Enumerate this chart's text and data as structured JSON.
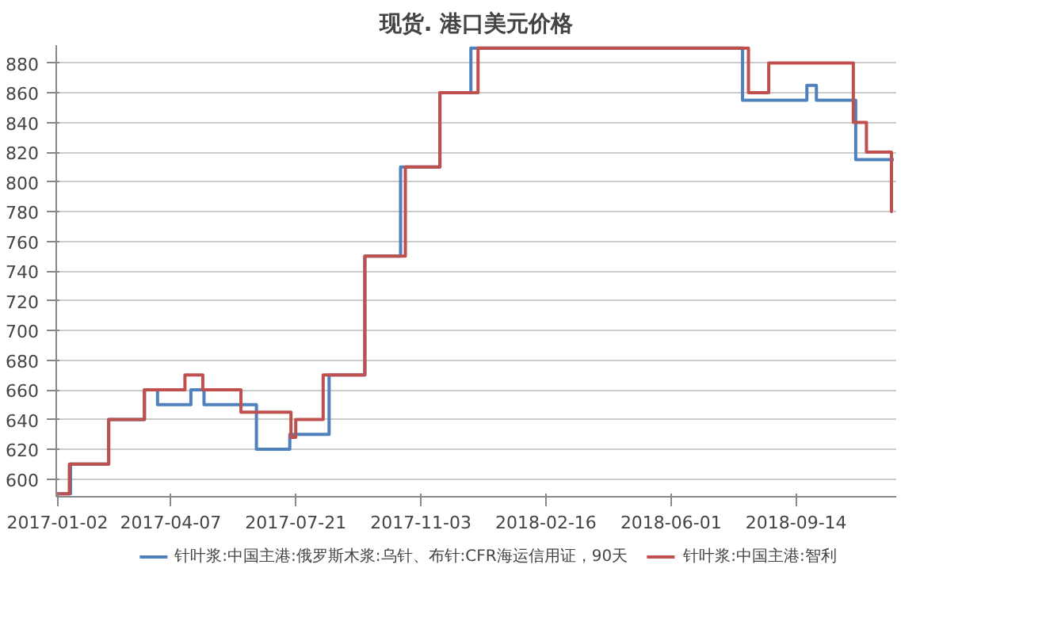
{
  "chart_data": {
    "type": "step",
    "title": "现货. 港口美元价格",
    "xlim": [
      "2017-01-01",
      "2018-12-07"
    ],
    "xticks": [
      "2017-01-02",
      "2017-04-07",
      "2017-07-21",
      "2017-11-03",
      "2018-02-16",
      "2018-06-01",
      "2018-09-14"
    ],
    "ylim": [
      588,
      892
    ],
    "yticks": [
      600,
      620,
      640,
      660,
      680,
      700,
      720,
      740,
      760,
      780,
      800,
      820,
      840,
      860,
      880
    ],
    "grid": "y",
    "legend": "bottom",
    "line_style": "solid",
    "marker": "none",
    "series": [
      {
        "name": "针叶浆:中国主港:俄罗斯木浆:乌针、布针:CFR海运信用证，90天",
        "color": "#4f81bd",
        "x": [
          "2017-01-01",
          "2017-01-13",
          "2017-02-14",
          "2017-03-16",
          "2017-03-27",
          "2017-04-24",
          "2017-05-05",
          "2017-06-18",
          "2017-07-16",
          "2017-08-18",
          "2017-09-17",
          "2017-10-17",
          "2017-11-19",
          "2017-12-15",
          "2018-07-31",
          "2018-09-23",
          "2018-10-01",
          "2018-11-03",
          "2018-12-05"
        ],
        "values": [
          590,
          610,
          640,
          660,
          650,
          660,
          650,
          620,
          630,
          670,
          750,
          810,
          860,
          890,
          855,
          865,
          855,
          815,
          815
        ]
      },
      {
        "name": "针叶浆:中国主港:智利",
        "color": "#c0504d",
        "x": [
          "2017-01-01",
          "2017-01-12",
          "2017-02-14",
          "2017-03-16",
          "2017-04-19",
          "2017-05-04",
          "2017-06-05",
          "2017-07-17",
          "2017-07-21",
          "2017-08-13",
          "2017-09-17",
          "2017-10-21",
          "2017-11-19",
          "2017-12-21",
          "2018-08-05",
          "2018-08-22",
          "2018-11-01",
          "2018-11-12",
          "2018-12-03",
          "2018-12-04"
        ],
        "values": [
          590,
          610,
          640,
          660,
          670,
          660,
          645,
          628,
          640,
          670,
          750,
          810,
          860,
          890,
          860,
          880,
          840,
          820,
          780,
          780
        ]
      }
    ]
  }
}
